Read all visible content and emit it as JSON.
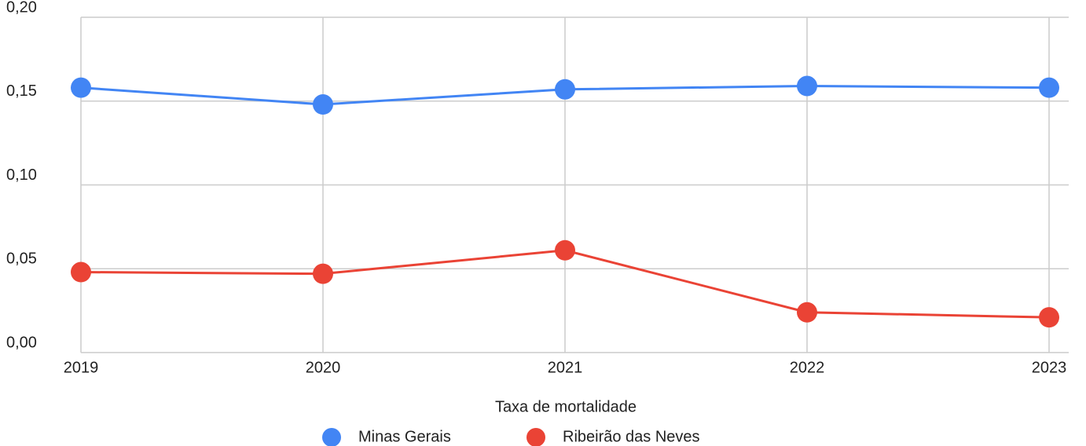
{
  "chart_data": {
    "type": "line",
    "x_label": "Taxa de mortalidade",
    "categories": [
      "2019",
      "2020",
      "2021",
      "2022",
      "2023"
    ],
    "series": [
      {
        "name": "Minas Gerais",
        "color": "#4285f4",
        "values": [
          0.158,
          0.148,
          0.157,
          0.159,
          0.158
        ]
      },
      {
        "name": "Ribeirão das Neves",
        "color": "#ea4335",
        "values": [
          0.048,
          0.047,
          0.061,
          0.024,
          0.021
        ]
      }
    ],
    "ylim": [
      0,
      0.2
    ],
    "yticks": [
      {
        "value": 0,
        "label": "0,00"
      },
      {
        "value": 0.05,
        "label": "0,05"
      },
      {
        "value": 0.1,
        "label": "0,10"
      },
      {
        "value": 0.15,
        "label": "0,15"
      },
      {
        "value": 0.2,
        "label": "0,20"
      }
    ],
    "grid": true,
    "legend": "bottom"
  }
}
